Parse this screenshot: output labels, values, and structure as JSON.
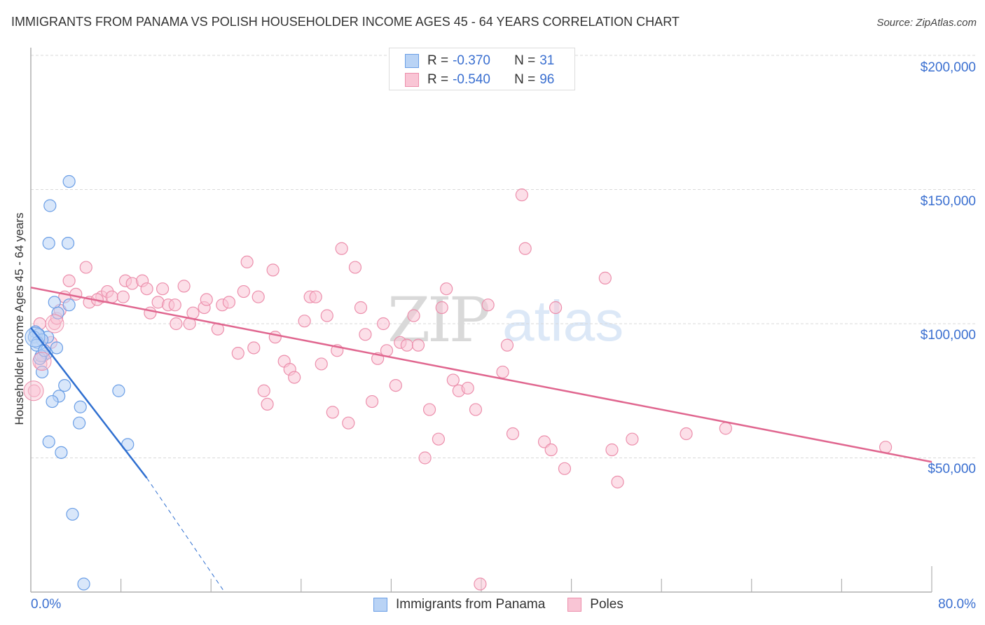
{
  "header": {
    "title": "IMMIGRANTS FROM PANAMA VS POLISH HOUSEHOLDER INCOME AGES 45 - 64 YEARS CORRELATION CHART",
    "source": "Source: ZipAtlas.com"
  },
  "watermark": {
    "zip": "ZIP",
    "atlas": "atlas"
  },
  "stats_legend": {
    "rows": [
      {
        "series": "Immigrants from Panama",
        "r_label": "R =",
        "r_value": "-0.370",
        "n_label": "N =",
        "n_value": "31",
        "fill": "#b9d3f5",
        "stroke": "#6a9ee6"
      },
      {
        "series": "Poles",
        "r_label": "R =",
        "r_value": "-0.540",
        "n_label": "N =",
        "n_value": "96",
        "fill": "#f9c5d5",
        "stroke": "#ec8fac"
      }
    ]
  },
  "axes": {
    "ylabel": "Householder Income Ages 45 - 64 years",
    "y_ticks": [
      "$200,000",
      "$150,000",
      "$100,000",
      "$50,000"
    ],
    "x_min_label": "0.0%",
    "x_max_label": "80.0%"
  },
  "bottom_legend": {
    "items": [
      {
        "label": "Immigrants from Panama",
        "fill": "#b9d3f5",
        "stroke": "#6a9ee6"
      },
      {
        "label": "Poles",
        "fill": "#f9c5d5",
        "stroke": "#ec8fac"
      }
    ]
  },
  "colors": {
    "blue_line": "#2f6fd0",
    "pink_line": "#e0668f",
    "grid": "#d9d9d9",
    "axis": "#b0b0b0",
    "tick_text": "#3a6fd0"
  },
  "chart_data": {
    "type": "scatter",
    "title": "IMMIGRANTS FROM PANAMA VS POLISH HOUSEHOLDER INCOME AGES 45 - 64 YEARS CORRELATION CHART",
    "xlabel": "",
    "ylabel": "Householder Income Ages 45 - 64 years",
    "xlim": [
      0,
      80
    ],
    "ylim": [
      0,
      205000
    ],
    "x_unit": "%",
    "y_ticks": [
      50000,
      100000,
      150000,
      200000
    ],
    "grid": true,
    "legend_position": "bottom",
    "series": [
      {
        "name": "Immigrants from Panama",
        "r": -0.37,
        "n": 31,
        "color": "#6a9ee6",
        "trend": {
          "x": [
            0,
            10.3
          ],
          "y": [
            98500,
            42500
          ],
          "dashed_extension_to": [
            17.2,
            0
          ]
        },
        "points": [
          [
            3.4,
            153000
          ],
          [
            1.7,
            144000
          ],
          [
            1.6,
            130000
          ],
          [
            3.3,
            130000
          ],
          [
            2.1,
            108000
          ],
          [
            3.4,
            107000
          ],
          [
            2.4,
            104000
          ],
          [
            0.4,
            97000
          ],
          [
            0.7,
            96000
          ],
          [
            0.3,
            95000
          ],
          [
            1.5,
            95000
          ],
          [
            1.0,
            94000
          ],
          [
            0.6,
            93000
          ],
          [
            2.3,
            91000
          ],
          [
            1.4,
            89000
          ],
          [
            0.9,
            88000
          ],
          [
            0.8,
            87000
          ],
          [
            1.0,
            82000
          ],
          [
            3.0,
            77000
          ],
          [
            7.8,
            75000
          ],
          [
            2.5,
            73000
          ],
          [
            1.9,
            71000
          ],
          [
            4.4,
            69000
          ],
          [
            4.3,
            63000
          ],
          [
            1.6,
            56000
          ],
          [
            2.7,
            52000
          ],
          [
            8.6,
            55000
          ],
          [
            3.7,
            29000
          ],
          [
            4.7,
            3000
          ],
          [
            0.5,
            92000
          ],
          [
            1.2,
            90000
          ]
        ]
      },
      {
        "name": "Poles",
        "r": -0.54,
        "n": 96,
        "color": "#ec8fac",
        "trend": {
          "x": [
            0,
            80
          ],
          "y": [
            113500,
            48500
          ]
        },
        "points": [
          [
            0.3,
            75000
          ],
          [
            0.9,
            85000
          ],
          [
            1.1,
            88000
          ],
          [
            1.8,
            93000
          ],
          [
            2.1,
            100000
          ],
          [
            2.3,
            102000
          ],
          [
            3.0,
            110000
          ],
          [
            3.4,
            116000
          ],
          [
            4.0,
            111000
          ],
          [
            4.9,
            121000
          ],
          [
            5.2,
            108000
          ],
          [
            6.3,
            110000
          ],
          [
            6.8,
            112000
          ],
          [
            7.2,
            110000
          ],
          [
            8.2,
            110000
          ],
          [
            8.4,
            116000
          ],
          [
            9.0,
            115000
          ],
          [
            9.9,
            116000
          ],
          [
            10.3,
            113000
          ],
          [
            10.6,
            104000
          ],
          [
            11.3,
            108000
          ],
          [
            11.7,
            113000
          ],
          [
            12.2,
            107000
          ],
          [
            12.8,
            107000
          ],
          [
            12.9,
            100000
          ],
          [
            13.6,
            114000
          ],
          [
            14.1,
            100000
          ],
          [
            14.4,
            104000
          ],
          [
            15.4,
            106000
          ],
          [
            15.6,
            109000
          ],
          [
            16.6,
            98000
          ],
          [
            17.0,
            107000
          ],
          [
            17.6,
            108000
          ],
          [
            18.4,
            89000
          ],
          [
            18.9,
            112000
          ],
          [
            19.2,
            123000
          ],
          [
            19.8,
            91000
          ],
          [
            20.2,
            110000
          ],
          [
            20.7,
            75000
          ],
          [
            21.0,
            70000
          ],
          [
            21.5,
            120000
          ],
          [
            21.7,
            95000
          ],
          [
            22.5,
            86000
          ],
          [
            23.0,
            83000
          ],
          [
            23.4,
            80000
          ],
          [
            24.3,
            101000
          ],
          [
            24.8,
            110000
          ],
          [
            25.3,
            110000
          ],
          [
            25.8,
            85000
          ],
          [
            26.3,
            103000
          ],
          [
            26.8,
            67000
          ],
          [
            27.2,
            90000
          ],
          [
            27.6,
            128000
          ],
          [
            28.2,
            63000
          ],
          [
            28.8,
            121000
          ],
          [
            29.3,
            106000
          ],
          [
            29.7,
            96000
          ],
          [
            30.3,
            71000
          ],
          [
            30.8,
            87000
          ],
          [
            31.3,
            100000
          ],
          [
            31.6,
            90000
          ],
          [
            32.4,
            77000
          ],
          [
            32.8,
            93000
          ],
          [
            33.4,
            92000
          ],
          [
            34.0,
            103000
          ],
          [
            34.4,
            92000
          ],
          [
            35.0,
            50000
          ],
          [
            35.4,
            68000
          ],
          [
            36.2,
            57000
          ],
          [
            36.5,
            106000
          ],
          [
            36.9,
            113000
          ],
          [
            37.5,
            79000
          ],
          [
            38.0,
            75000
          ],
          [
            38.8,
            76000
          ],
          [
            39.5,
            68000
          ],
          [
            40.6,
            107000
          ],
          [
            41.9,
            82000
          ],
          [
            42.3,
            92000
          ],
          [
            42.8,
            59000
          ],
          [
            43.6,
            148000
          ],
          [
            43.9,
            128000
          ],
          [
            45.6,
            56000
          ],
          [
            46.2,
            53000
          ],
          [
            46.6,
            106000
          ],
          [
            47.4,
            46000
          ],
          [
            51.0,
            117000
          ],
          [
            51.6,
            53000
          ],
          [
            52.1,
            41000
          ],
          [
            53.4,
            57000
          ],
          [
            58.2,
            59000
          ],
          [
            61.7,
            61000
          ],
          [
            75.9,
            54000
          ],
          [
            39.9,
            3000
          ],
          [
            2.6,
            105000
          ],
          [
            5.9,
            109000
          ],
          [
            0.8,
            100000
          ]
        ]
      }
    ]
  }
}
